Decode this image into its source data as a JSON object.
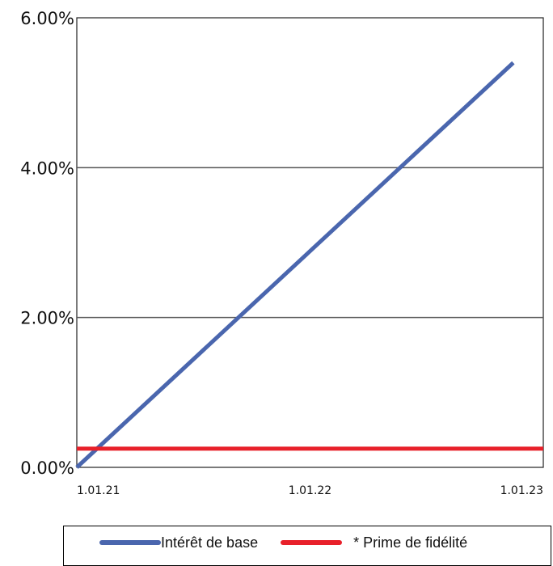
{
  "chart_data": {
    "type": "line",
    "x_ticks": [
      "1.01.21",
      "1.01.22",
      "1.01.23"
    ],
    "y_ticks": [
      "0.00%",
      "2.00%",
      "4.00%",
      "6.00%"
    ],
    "ylim": [
      0,
      6
    ],
    "grid": true,
    "legend_position": "bottom",
    "series": [
      {
        "name": "Intérêt de base",
        "color": "#4a66ae",
        "points": [
          {
            "x": "2021-01-01",
            "y": 0.0
          },
          {
            "x": "2022-11-15",
            "y": 5.4
          }
        ]
      },
      {
        "name": "* Prime de fidélité",
        "color": "#e8202a",
        "points": [
          {
            "x": "2021-01-01",
            "y": 0.25
          },
          {
            "x": "2023-01-01",
            "y": 0.25
          }
        ]
      }
    ]
  }
}
